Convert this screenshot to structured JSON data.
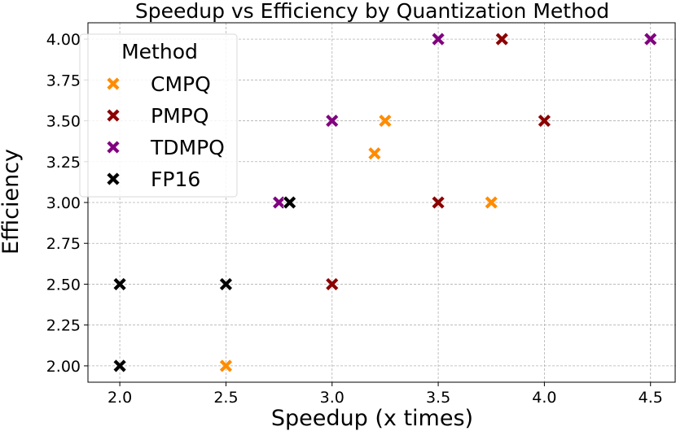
{
  "chart_data": {
    "type": "scatter",
    "title": "Speedup vs Efficiency by Quantization Method",
    "xlabel": "Speedup (x times)",
    "ylabel": "Efficiency",
    "xlim": [
      1.85,
      4.62
    ],
    "ylim": [
      1.9,
      4.1
    ],
    "grid": true,
    "x_ticks": [
      2.0,
      2.5,
      3.0,
      3.5,
      4.0,
      4.5
    ],
    "x_tick_labels": [
      "2.0",
      "2.5",
      "3.0",
      "3.5",
      "4.0",
      "4.5"
    ],
    "y_ticks": [
      2.0,
      2.25,
      2.5,
      2.75,
      3.0,
      3.25,
      3.5,
      3.75,
      4.0
    ],
    "y_tick_labels": [
      "2.00",
      "2.25",
      "2.50",
      "2.75",
      "3.00",
      "3.25",
      "3.50",
      "3.75",
      "4.00"
    ],
    "marker": "X",
    "legend": {
      "title": "Method",
      "location": "upper-left"
    },
    "series": [
      {
        "name": "CMPQ",
        "color": "#ff8c00",
        "x": [
          2.5,
          3.2,
          3.25,
          3.75
        ],
        "y": [
          2.0,
          3.3,
          3.5,
          3.0
        ]
      },
      {
        "name": "PMPQ",
        "color": "#8b0000",
        "x": [
          3.0,
          3.5,
          3.8,
          4.0
        ],
        "y": [
          2.5,
          3.0,
          4.0,
          3.5
        ]
      },
      {
        "name": "TDMPQ",
        "color": "#800080",
        "x": [
          2.75,
          3.0,
          3.5,
          4.5
        ],
        "y": [
          3.0,
          3.5,
          4.0,
          4.0
        ]
      },
      {
        "name": "FP16",
        "color": "#000000",
        "x": [
          2.0,
          2.0,
          2.5,
          2.8
        ],
        "y": [
          2.0,
          2.5,
          2.5,
          3.0
        ]
      }
    ]
  }
}
